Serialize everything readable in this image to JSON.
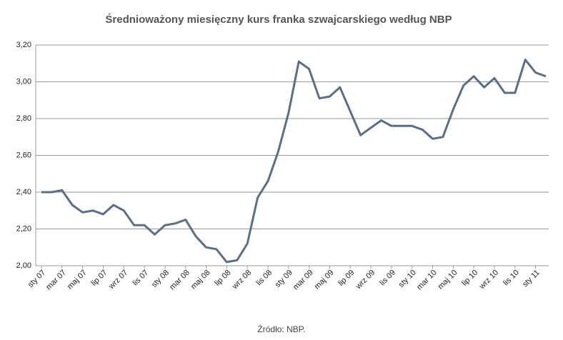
{
  "chart_data": {
    "type": "line",
    "title": "Średnioważony miesięczny kurs franka szwajcarskiego według NBP",
    "source": "Źródło: NBP.",
    "categories": [
      "sty 07",
      null,
      "mar 07",
      null,
      "maj 07",
      null,
      "lip 07",
      null,
      "wrz 07",
      null,
      "lis 07",
      null,
      "sty 08",
      null,
      "mar 08",
      null,
      "maj 08",
      null,
      "lip 08",
      null,
      "wrz 08",
      null,
      "lis 08",
      null,
      "sty 09",
      null,
      "mar 09",
      null,
      "maj 09",
      null,
      "lip 09",
      null,
      "wrz 09",
      null,
      "lis 09",
      null,
      "sty 10",
      null,
      "mar 10",
      null,
      "maj 10",
      null,
      "lip 10",
      null,
      "wrz 10",
      null,
      "lis 10",
      null,
      "sty 11",
      null
    ],
    "series": [
      {
        "color": "#5b6e88",
        "values": [
          2.4,
          2.4,
          2.41,
          2.33,
          2.29,
          2.3,
          2.28,
          2.33,
          2.3,
          2.22,
          2.22,
          2.17,
          2.22,
          2.23,
          2.25,
          2.16,
          2.1,
          2.09,
          2.02,
          2.03,
          2.12,
          2.37,
          2.46,
          2.62,
          2.83,
          3.11,
          3.07,
          2.91,
          2.92,
          2.97,
          2.84,
          2.71,
          2.75,
          2.79,
          2.76,
          2.76,
          2.76,
          2.74,
          2.69,
          2.7,
          2.85,
          2.98,
          3.03,
          2.97,
          3.02,
          2.94,
          2.94,
          3.12,
          3.05,
          3.03
        ]
      }
    ],
    "ylim": [
      2.0,
      3.2
    ],
    "yticks": [
      {
        "value": 2.0,
        "label": "2,00"
      },
      {
        "value": 2.2,
        "label": "2,20"
      },
      {
        "value": 2.4,
        "label": "2,40"
      },
      {
        "value": 2.6,
        "label": "2,60"
      },
      {
        "value": 2.8,
        "label": "2,80"
      },
      {
        "value": 3.0,
        "label": "3,00"
      },
      {
        "value": 3.2,
        "label": "3,20"
      }
    ],
    "grid": true
  }
}
